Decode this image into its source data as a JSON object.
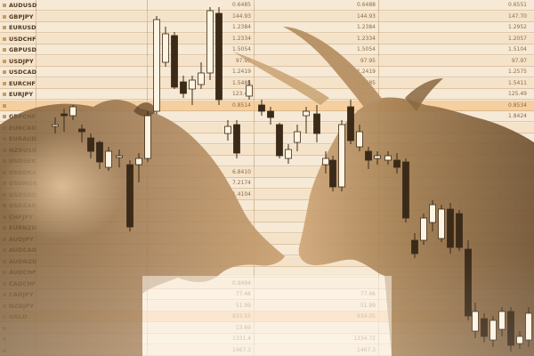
{
  "tickers": [
    {
      "symbol": "AUDUSD",
      "v1": "0.6485",
      "v2": "0.6488",
      "v3": "0.6551"
    },
    {
      "symbol": "GBPJPY",
      "v1": "144.93",
      "v2": "144.93",
      "v3": "147.70"
    },
    {
      "symbol": "EURUSD",
      "v1": "1.2384",
      "v2": "1.2384",
      "v3": "1.2952"
    },
    {
      "symbol": "USDCHF",
      "v1": "1.2334",
      "v2": "1.2334",
      "v3": "1.2057"
    },
    {
      "symbol": "GBPUSD",
      "v1": "1.5054",
      "v2": "1.5054",
      "v3": "1.5104"
    },
    {
      "symbol": "USDJPY",
      "v1": "97.95",
      "v2": "97.95",
      "v3": "97.97"
    },
    {
      "symbol": "USDCAD",
      "v1": "1.2419",
      "v2": "1.2419",
      "v3": "1.2575"
    },
    {
      "symbol": "EURCHF",
      "v1": "1.5485",
      "v2": "1.5485",
      "v3": "1.5411"
    },
    {
      "symbol": "EURJPY",
      "v1": "123.47",
      "v2": "123.47",
      "v3": "125.49"
    },
    {
      "symbol": "",
      "v1": "0.8514",
      "v2": "",
      "v3": "0.8534"
    },
    {
      "symbol": "GBPCHF",
      "v1": "",
      "v2": "",
      "v3": "1.8424"
    },
    {
      "symbol": "EURCAD",
      "v1": "",
      "v2": "",
      "v3": ""
    },
    {
      "symbol": "EURAUD",
      "v1": "",
      "v2": "",
      "v3": ""
    },
    {
      "symbol": "NZDUSD",
      "v1": "",
      "v2": "",
      "v3": ""
    },
    {
      "symbol": "USDSEK",
      "v1": "",
      "v2": "",
      "v3": ""
    },
    {
      "symbol": "USDDKK",
      "v1": "6.8410",
      "v2": "",
      "v3": ""
    },
    {
      "symbol": "USDNOK",
      "v1": "7.2174",
      "v2": "",
      "v3": ""
    },
    {
      "symbol": "USDSGD",
      "v1": "1.4104",
      "v2": "",
      "v3": ""
    },
    {
      "symbol": "USDZAR",
      "v1": "",
      "v2": "",
      "v3": ""
    },
    {
      "symbol": "CHFJPY",
      "v1": "",
      "v2": "",
      "v3": ""
    },
    {
      "symbol": "EURNZD",
      "v1": "",
      "v2": "",
      "v3": ""
    },
    {
      "symbol": "AUDJPY",
      "v1": "",
      "v2": "",
      "v3": ""
    },
    {
      "symbol": "AUDCAD",
      "v1": "",
      "v2": "",
      "v3": ""
    },
    {
      "symbol": "AUDNZD",
      "v1": "",
      "v2": "",
      "v3": ""
    },
    {
      "symbol": "AUDCHF",
      "v1": "",
      "v2": "",
      "v3": ""
    },
    {
      "symbol": "CADCHF",
      "v1": "0.9494",
      "v2": "",
      "v3": ""
    },
    {
      "symbol": "CADJPY",
      "v1": "77.46",
      "v2": "77.46",
      "v3": ""
    },
    {
      "symbol": "NZDJPY",
      "v1": "51.99",
      "v2": "51.99",
      "v3": ""
    },
    {
      "symbol": "GOLD",
      "v1": "933.55",
      "v2": "934.05",
      "v3": ""
    },
    {
      "symbol": "",
      "v1": "13.69",
      "v2": "",
      "v3": ""
    },
    {
      "symbol": "",
      "v1": "1331.4",
      "v2": "1334.72",
      "v3": ""
    },
    {
      "symbol": "",
      "v1": "1467.3",
      "v2": "1467.3",
      "v3": ""
    }
  ],
  "palette": {
    "tint": "#c79a5f",
    "dark": "#3b2a18",
    "light": "#fff4e2",
    "highlight": "#f4c284"
  }
}
